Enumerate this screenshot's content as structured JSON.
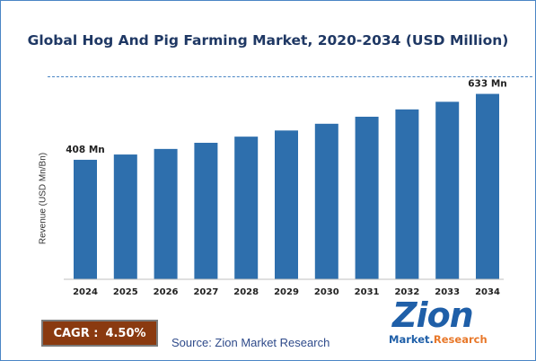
{
  "chart_data": {
    "type": "bar",
    "title": "Global Hog And Pig Farming Market, 2020-2034 (USD Million)",
    "xlabel": "",
    "ylabel": "Revenue (USD Mn/Bn)",
    "categories": [
      "2024",
      "2025",
      "2026",
      "2027",
      "2028",
      "2029",
      "2030",
      "2031",
      "2032",
      "2033",
      "2034"
    ],
    "values": [
      408,
      426,
      445,
      466,
      487,
      508,
      531,
      555,
      580,
      606,
      633
    ],
    "data_labels": [
      {
        "index": 0,
        "text": "408 Mn"
      },
      {
        "index": 10,
        "text": "633 Mn"
      }
    ],
    "ylim": [
      0,
      650
    ],
    "grid": false,
    "legend": "none",
    "bar_color": "#2e6fad"
  },
  "footer": {
    "cagr_label": "CAGR :",
    "cagr_value": "4.50%",
    "source": "Source: Zion Market Research"
  },
  "logo": {
    "main": "Zion",
    "sub_first": "Market.",
    "sub_second": "Research"
  }
}
